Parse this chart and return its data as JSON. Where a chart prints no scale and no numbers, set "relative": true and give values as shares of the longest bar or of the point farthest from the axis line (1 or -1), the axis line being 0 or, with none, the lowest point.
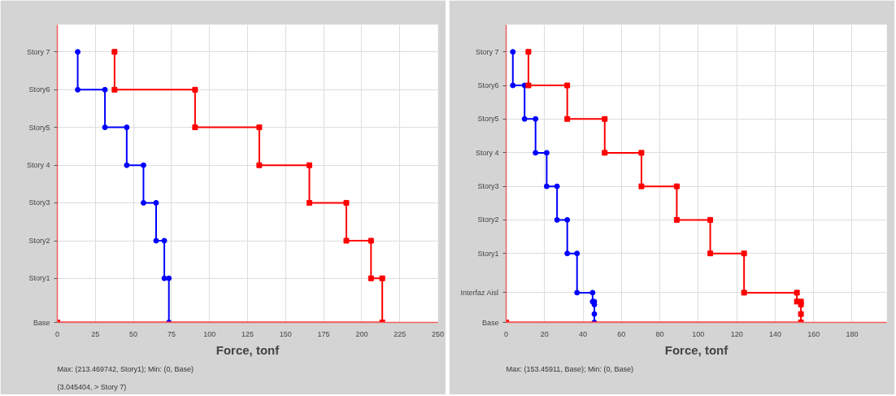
{
  "chart_data": [
    {
      "type": "line",
      "relative": true,
      "xlabel": "Force, tonf",
      "xlim": [
        0,
        250
      ],
      "xticks": [
        0,
        25,
        50,
        75,
        100,
        125,
        150,
        175,
        200,
        225,
        250
      ],
      "grid": true,
      "ref_lines": [
        {
          "axis": "y",
          "value": 0,
          "label": "Base"
        },
        {
          "axis": "y",
          "value": 0.163,
          "label": "Story1"
        },
        {
          "axis": "y",
          "value": 0.302,
          "label": "Story2"
        },
        {
          "axis": "y",
          "value": 0.442,
          "label": "Story3"
        },
        {
          "axis": "y",
          "value": 0.581,
          "label": "Story 4"
        },
        {
          "axis": "y",
          "value": 0.721,
          "label": "Story5"
        },
        {
          "axis": "y",
          "value": 0.86,
          "label": "Story6"
        },
        {
          "axis": "y",
          "value": 1,
          "label": "Story 7"
        }
      ],
      "series": [
        {
          "color": "#0000ff",
          "marker": "circle",
          "x": [
            13.4,
            13.4,
            31.3,
            31.3,
            45.6,
            45.6,
            56.6,
            56.6,
            64.9,
            64.9,
            70.3,
            70.3,
            73.3,
            73.3
          ],
          "values": [
            1,
            0.86,
            0.86,
            0.721,
            0.721,
            0.581,
            0.581,
            0.442,
            0.442,
            0.302,
            0.302,
            0.163,
            0.163,
            0
          ]
        },
        {
          "color": "#ff0000",
          "marker": "square",
          "x": [
            37.6,
            37.6,
            90.5,
            90.5,
            132.7,
            132.7,
            165.6,
            165.6,
            189.9,
            189.9,
            206.1,
            206.1,
            213.5,
            213.5,
            0
          ],
          "values": [
            1,
            0.86,
            0.86,
            0.721,
            0.721,
            0.581,
            0.581,
            0.442,
            0.442,
            0.302,
            0.302,
            0.163,
            0.163,
            0,
            0
          ]
        }
      ],
      "annotations": [
        "(3.045404, > Story 7)",
        "Max: (213.469742, Story1);   Min: (0, Base)"
      ]
    },
    {
      "type": "line",
      "relative": true,
      "xlabel": "Force, tonf",
      "xlim": [
        0,
        198
      ],
      "xticks": [
        0,
        20,
        40,
        60,
        80,
        100,
        120,
        140,
        160,
        180
      ],
      "grid": true,
      "ref_lines": [
        {
          "axis": "y",
          "value": 0,
          "label": "Base"
        },
        {
          "axis": "y",
          "value": 0.11,
          "label": "Interfaz Aisl"
        },
        {
          "axis": "y",
          "value": 0.255,
          "label": "Story1"
        },
        {
          "axis": "y",
          "value": 0.379,
          "label": "Story2"
        },
        {
          "axis": "y",
          "value": 0.503,
          "label": "Story3"
        },
        {
          "axis": "y",
          "value": 0.627,
          "label": "Story 4"
        },
        {
          "axis": "y",
          "value": 0.752,
          "label": "Story5"
        },
        {
          "axis": "y",
          "value": 0.876,
          "label": "Story6"
        },
        {
          "axis": "y",
          "value": 1,
          "label": "Story 7"
        }
      ],
      "series": [
        {
          "color": "#0000ff",
          "marker": "circle",
          "x": [
            3.5,
            3.5,
            9.6,
            9.6,
            15.3,
            15.3,
            21.1,
            21.1,
            26.5,
            26.5,
            31.8,
            31.8,
            36.9,
            36.9,
            45.0,
            45.0,
            45.9,
            45.9,
            45.9,
            45.9
          ],
          "values": [
            1,
            0.876,
            0.876,
            0.752,
            0.752,
            0.627,
            0.627,
            0.503,
            0.503,
            0.379,
            0.379,
            0.255,
            0.255,
            0.11,
            0.11,
            0.077,
            0.077,
            0.066,
            0.031,
            0
          ]
        },
        {
          "color": "#ff0000",
          "marker": "square",
          "x": [
            11.6,
            11.6,
            31.8,
            31.8,
            51.3,
            51.3,
            70.4,
            70.4,
            88.8,
            88.8,
            106.2,
            106.2,
            123.8,
            123.8,
            151.3,
            151.3,
            153.4,
            153.4,
            153.4,
            153.4,
            0
          ],
          "values": [
            1,
            0.876,
            0.876,
            0.752,
            0.752,
            0.627,
            0.627,
            0.503,
            0.503,
            0.379,
            0.379,
            0.255,
            0.255,
            0.11,
            0.11,
            0.077,
            0.077,
            0.066,
            0.031,
            0,
            0
          ]
        }
      ],
      "annotations": [
        "Max: (153.45911, Base);   Min: (0, Base)"
      ]
    }
  ]
}
